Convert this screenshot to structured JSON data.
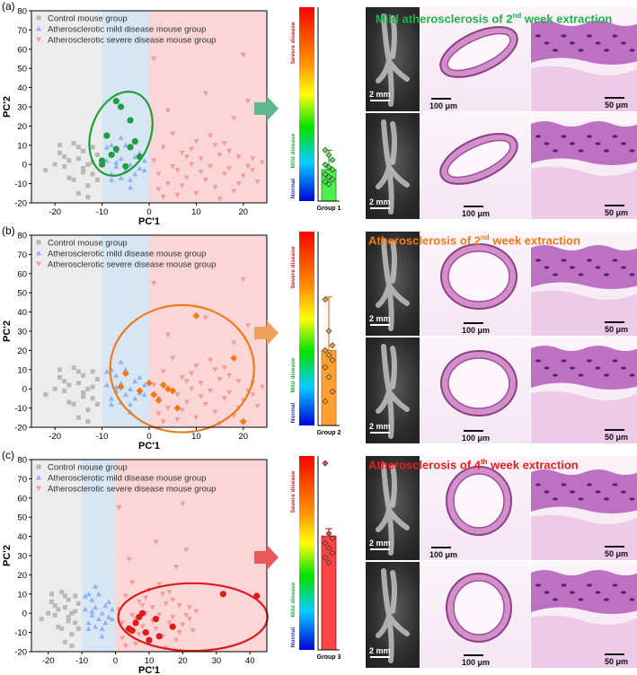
{
  "panels": [
    {
      "label": "(a)",
      "title": {
        "pre": "Mild atherosclerosis of 2",
        "sup": "nd",
        "post": " week extraction"
      },
      "title_color": "#1fb04a",
      "ellipse_color": "#1e9e3e",
      "arrow_color": "#5fb88a",
      "scale": {
        "r1_photo": "2 mm",
        "r1_mid": "100 μm",
        "r1_zoom": "50 μm",
        "r2_photo": "2 mm",
        "r2_mid": "100 μm",
        "r2_zoom": "50 μm"
      },
      "chart_data": {
        "type": "scatter",
        "xlabel": "PC'1",
        "ylabel": "PC'2",
        "xlim": [
          -25,
          25
        ],
        "ylim": [
          -20,
          80
        ],
        "xticks": [
          -20,
          -10,
          0,
          10,
          20
        ],
        "yticks": [
          -20,
          -10,
          0,
          10,
          20,
          30,
          40,
          50,
          60,
          70,
          80
        ],
        "legend": [
          "Control mouse group",
          "Atherosclerotic mild disease mouse group",
          "Atherosclerotic severe disease mouse group"
        ],
        "highlight": [
          [
            -7,
            33
          ],
          [
            -6,
            30
          ],
          [
            -4,
            23
          ],
          [
            -9,
            15
          ],
          [
            -3,
            12
          ],
          [
            -4,
            9
          ],
          [
            -7,
            8
          ],
          [
            -8,
            5
          ],
          [
            -2,
            4
          ],
          [
            -10,
            0
          ],
          [
            -5,
            -1
          ],
          [
            -10,
            2
          ]
        ]
      },
      "bar": {
        "group": "Group 1",
        "value": 13,
        "err": 8,
        "color": "#4cf04c",
        "edge": "#1f8a1f",
        "points": [
          21,
          19,
          17,
          15,
          14,
          13,
          11,
          10,
          9,
          8,
          7
        ]
      }
    },
    {
      "label": "(b)",
      "title": {
        "pre": "Atherosclerosis of 2",
        "sup": "nd",
        "post": " week extraction"
      },
      "title_color": "#f07a18",
      "ellipse_color": "#f07a18",
      "arrow_color": "#f0a05a",
      "scale": {
        "r1_photo": "2 mm",
        "r1_mid": "100 μm",
        "r1_zoom": "50 μm",
        "r2_photo": "2 mm",
        "r2_mid": "100 μm",
        "r2_zoom": "50 μm"
      },
      "chart_data": {
        "type": "scatter",
        "xlabel": "PC'1",
        "ylabel": "PC'2",
        "xlim": [
          -25,
          25
        ],
        "ylim": [
          -20,
          80
        ],
        "xticks": [
          -20,
          -10,
          0,
          10,
          20
        ],
        "yticks": [
          -20,
          -10,
          0,
          10,
          20,
          30,
          40,
          50,
          60,
          70,
          80
        ],
        "legend": [
          "Control mouse group",
          "Atherosclerotic mild disease mouse group",
          "Atherosclerotic severe disease mouse group"
        ],
        "highlight": [
          [
            10,
            38
          ],
          [
            18,
            16
          ],
          [
            20,
            -17
          ],
          [
            -5,
            8
          ],
          [
            -6,
            1
          ],
          [
            0,
            3
          ],
          [
            1,
            -3
          ],
          [
            3,
            2
          ],
          [
            4,
            0
          ],
          [
            5,
            -1
          ],
          [
            2,
            -6
          ],
          [
            6,
            -10
          ],
          [
            -2,
            -1
          ]
        ]
      },
      "bar": {
        "group": "Group 2",
        "value": 31,
        "err": 22,
        "color": "#ffa033",
        "edge": "#c06a10",
        "points": [
          52,
          39,
          33,
          31,
          29,
          27,
          24,
          20,
          14,
          10
        ]
      }
    },
    {
      "label": "(c)",
      "title": {
        "pre": "Atherosclerosis of 4",
        "sup": "th",
        "post": " week extraction"
      },
      "title_color": "#ee1c1c",
      "ellipse_color": "#e01a1a",
      "arrow_color": "#e85a5a",
      "scale": {
        "r1_photo": "2 mm",
        "r1_mid": "100 μm",
        "r1_zoom": "50 μm",
        "r2_photo": "2 mm",
        "r2_mid": "100 μm",
        "r2_zoom": "50 μm"
      },
      "chart_data": {
        "type": "scatter",
        "xlabel": "PC'1",
        "ylabel": "PC'2",
        "xlim": [
          -25,
          45
        ],
        "ylim": [
          -20,
          80
        ],
        "xticks": [
          -20,
          -10,
          0,
          10,
          20,
          30,
          40
        ],
        "yticks": [
          -20,
          -10,
          0,
          10,
          20,
          30,
          40,
          50,
          60,
          70,
          80
        ],
        "legend": [
          "Control mouse group",
          "Atherosclerotic mild disease mouse group",
          "Atherosclerotic severe disease mouse group"
        ],
        "highlight": [
          [
            32,
            10
          ],
          [
            42,
            9
          ],
          [
            17,
            -7
          ],
          [
            12,
            -3
          ],
          [
            8,
            0
          ],
          [
            6,
            -5
          ],
          [
            5,
            -9
          ],
          [
            9,
            -10
          ],
          [
            13,
            -12
          ],
          [
            10,
            -14
          ],
          [
            7,
            -2
          ],
          [
            4,
            -8
          ]
        ]
      },
      "bar": {
        "group": "Group 3",
        "value": 47,
        "err": 3,
        "color": "#ff4646",
        "edge": "#a01010",
        "points": [
          77,
          48,
          46,
          44,
          42,
          40,
          38,
          36
        ]
      }
    }
  ],
  "scatter_background": {
    "control": [
      [
        -22,
        -3
      ],
      [
        -20,
        0
      ],
      [
        -19,
        10
      ],
      [
        -18,
        4
      ],
      [
        -17,
        -7
      ],
      [
        -16,
        11
      ],
      [
        -15,
        3
      ],
      [
        -14,
        -2
      ],
      [
        -14,
        7
      ],
      [
        -13,
        -11
      ],
      [
        -12,
        -5
      ],
      [
        -12,
        1
      ],
      [
        -11,
        5
      ],
      [
        -13,
        -17
      ],
      [
        -15,
        -15
      ],
      [
        -16,
        -8
      ],
      [
        -18,
        -1
      ],
      [
        -19,
        6
      ],
      [
        -17,
        2
      ],
      [
        -15,
        9
      ],
      [
        -13,
        0
      ],
      [
        -11,
        -8
      ],
      [
        -12,
        9
      ],
      [
        -14,
        -4
      ]
    ],
    "mild": [
      [
        -8,
        10
      ],
      [
        -7,
        7
      ],
      [
        -6,
        3
      ],
      [
        -9,
        2
      ],
      [
        -5,
        -3
      ],
      [
        -4,
        0
      ],
      [
        -3,
        4
      ],
      [
        -2,
        6
      ],
      [
        -8,
        -5
      ],
      [
        -7,
        -1
      ],
      [
        -6,
        -7
      ],
      [
        -4,
        -8
      ],
      [
        -1,
        2
      ],
      [
        -2,
        -2
      ],
      [
        -9,
        9
      ],
      [
        -5,
        10
      ],
      [
        -6,
        14
      ],
      [
        -3,
        -5
      ],
      [
        -8,
        -8
      ],
      [
        -4,
        -12
      ],
      [
        -7,
        1
      ],
      [
        -1,
        -3
      ]
    ],
    "severe": [
      [
        1,
        55
      ],
      [
        20,
        57
      ],
      [
        12,
        37
      ],
      [
        21,
        33
      ],
      [
        4,
        28
      ],
      [
        18,
        24
      ],
      [
        5,
        16
      ],
      [
        10,
        12
      ],
      [
        14,
        10
      ],
      [
        3,
        9
      ],
      [
        7,
        6
      ],
      [
        15,
        5
      ],
      [
        19,
        4
      ],
      [
        22,
        3
      ],
      [
        1,
        2
      ],
      [
        9,
        0
      ],
      [
        13,
        -1
      ],
      [
        17,
        -2
      ],
      [
        6,
        -3
      ],
      [
        11,
        -4
      ],
      [
        2,
        -5
      ],
      [
        16,
        -5
      ],
      [
        20,
        -6
      ],
      [
        8,
        -7
      ],
      [
        12,
        -8
      ],
      [
        4,
        -10
      ],
      [
        14,
        -12
      ],
      [
        18,
        -14
      ],
      [
        10,
        -15
      ],
      [
        6,
        -16
      ],
      [
        2,
        -13
      ],
      [
        23,
        -9
      ],
      [
        24,
        1
      ],
      [
        11,
        3
      ],
      [
        7,
        -11
      ],
      [
        15,
        -18
      ],
      [
        3,
        -17
      ],
      [
        19,
        -10
      ],
      [
        21,
        -1
      ],
      [
        9,
        8
      ],
      [
        13,
        15
      ],
      [
        16,
        11
      ],
      [
        5,
        -1
      ],
      [
        8,
        4
      ],
      [
        22,
        -3
      ],
      [
        17,
        7
      ]
    ]
  },
  "colorbar": {
    "labels": [
      "Severe disease",
      "Mild disease",
      "Normal"
    ],
    "label_colors": [
      "#e01a1a",
      "#1fb04a",
      "#2b2bd9"
    ]
  },
  "colors": {
    "control": "#b9b9b9",
    "mild": "#8fb3ef",
    "severe": "#f49a9a",
    "bg_control": "#ececec",
    "bg_mild": "#d6e6f4",
    "bg_severe": "#fbd6d6"
  }
}
